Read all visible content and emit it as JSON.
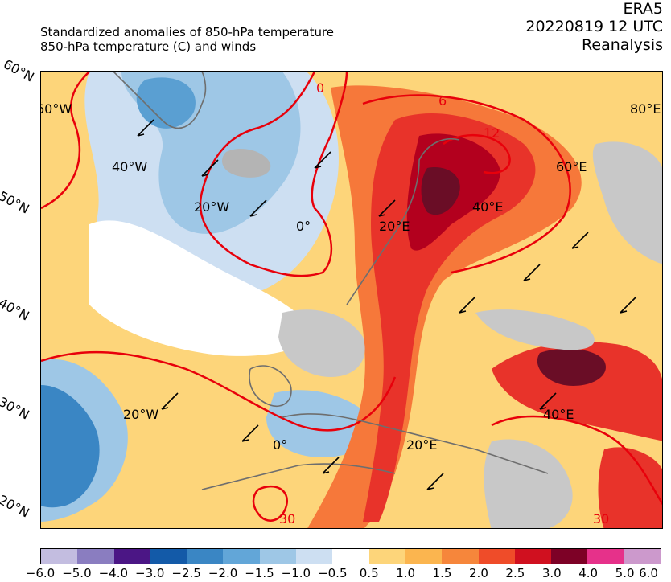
{
  "header": {
    "subtitle_line1": "Standardized anomalies of 850-hPa temperature",
    "subtitle_line2": "850-hPa temperature (C) and winds",
    "dataset": "ERA5",
    "datetime": "20220819 12 UTC",
    "product": "Reanalysis"
  },
  "map": {
    "lat_labels": [
      "60°N",
      "50°N",
      "40°N",
      "30°N",
      "20°N"
    ],
    "grid_labels": [
      {
        "text": "60°W"
      },
      {
        "text": "40°W"
      },
      {
        "text": "20°W"
      },
      {
        "text": "0°"
      },
      {
        "text": "20°E"
      },
      {
        "text": "40°E"
      },
      {
        "text": "60°E"
      },
      {
        "text": "80°E"
      },
      {
        "text": "20°W"
      },
      {
        "text": "0°"
      },
      {
        "text": "20°E"
      },
      {
        "text": "40°E"
      }
    ],
    "isotherm_labels": [
      "0",
      "6",
      "12",
      "30",
      "30"
    ],
    "colors": {
      "warm_light": "#fdd57a",
      "warm_mid": "#fba94c",
      "warm_orange": "#f6783a",
      "red": "#e8332a",
      "dark_red": "#b3001e",
      "maroon": "#6a0d26",
      "cool_light": "#cddff2",
      "cool_mid": "#9ec7e6",
      "cool_blue": "#5a9fd2",
      "blue": "#2f7bbf",
      "land_gray": "#c8c8c8",
      "contour_red": "#e8000b"
    }
  },
  "colorbar": {
    "colors": [
      "#c3bde0",
      "#8a7dc0",
      "#4b1685",
      "#135aa8",
      "#3a86c4",
      "#62a6d8",
      "#9ec7e6",
      "#cddff2",
      "#ffffff",
      "#fdd57a",
      "#fbb54f",
      "#f6863b",
      "#ef4c29",
      "#d0101f",
      "#7d0126",
      "#e6318a",
      "#cc99cc"
    ],
    "ticks": [
      "−6.0",
      "−5.0",
      "−4.0",
      "−3.0",
      "−2.5",
      "−2.0",
      "−1.5",
      "−1.0",
      "−0.5",
      "0.5",
      "1.0",
      "1.5",
      "2.0",
      "2.5",
      "3.0",
      "4.0",
      "5.0",
      "6.0"
    ]
  }
}
